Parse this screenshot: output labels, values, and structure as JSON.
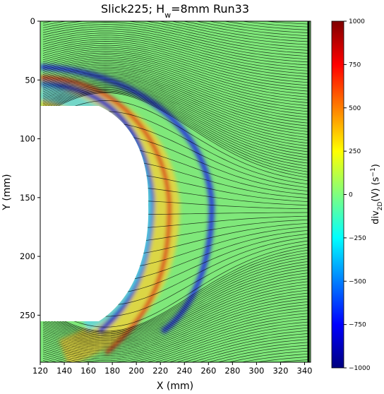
{
  "chart_data": {
    "type": "heatmap",
    "title": [
      "Slick225; H",
      "w",
      "=8mm Run33"
    ],
    "x_label": "X (mm)",
    "y_label": "Y (mm)",
    "colorbar_label": [
      "div",
      "2D",
      "(V) (s",
      "−1",
      ")"
    ],
    "xlim": [
      120,
      345
    ],
    "xticks": [
      120,
      140,
      160,
      180,
      200,
      220,
      240,
      260,
      280,
      300,
      320,
      340
    ],
    "ylim": [
      290,
      0
    ],
    "yticks": [
      0,
      50,
      100,
      150,
      200,
      250
    ],
    "colormap": "jet",
    "clim": [
      -1000,
      1000
    ],
    "colorbar_ticks": [
      {
        "value": -1000,
        "label": "−1000"
      },
      {
        "value": -750,
        "label": "−750"
      },
      {
        "value": -500,
        "label": "−500"
      },
      {
        "value": -250,
        "label": "−250"
      },
      0,
      250,
      500,
      750,
      1000
    ]
  }
}
